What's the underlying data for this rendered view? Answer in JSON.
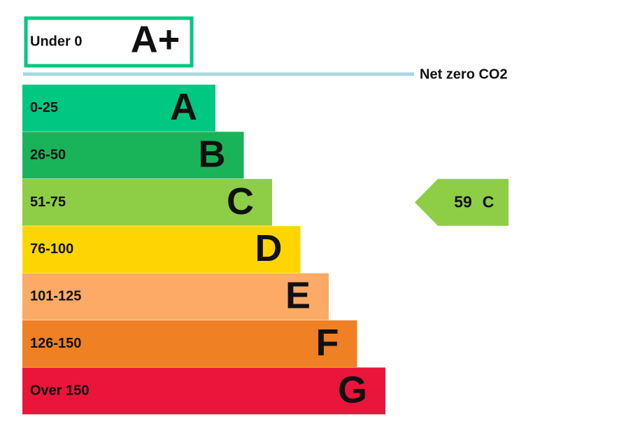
{
  "top_band": {
    "range": "Under 0",
    "letter": "A+",
    "color": "#00c781"
  },
  "net_zero": {
    "label": "Net zero CO2",
    "color": "#a8d8e0"
  },
  "bands": [
    {
      "range": "0-25",
      "letter": "A",
      "color": "#00c781"
    },
    {
      "range": "26-50",
      "letter": "B",
      "color": "#19b459"
    },
    {
      "range": "51-75",
      "letter": "C",
      "color": "#8dce46"
    },
    {
      "range": "76-100",
      "letter": "D",
      "color": "#ffd500"
    },
    {
      "range": "101-125",
      "letter": "E",
      "color": "#fcaa65"
    },
    {
      "range": "126-150",
      "letter": "F",
      "color": "#ef8023"
    },
    {
      "range": "Over 150",
      "letter": "G",
      "color": "#e9153b"
    }
  ],
  "current": {
    "value": "59",
    "letter": "C",
    "band": 2
  }
}
